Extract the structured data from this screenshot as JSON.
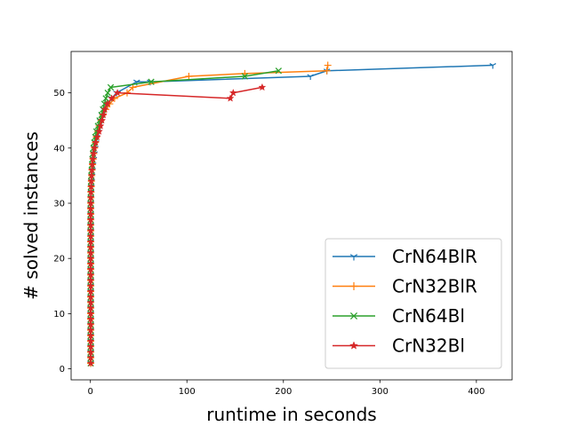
{
  "chart_data": {
    "type": "line",
    "xlabel": "runtime in seconds",
    "ylabel": "# solved instances",
    "xlim": [
      -20,
      437
    ],
    "ylim": [
      -2,
      57.5
    ],
    "xticks": [
      0,
      100,
      200,
      300,
      400
    ],
    "yticks": [
      0,
      10,
      20,
      30,
      40,
      50
    ],
    "legend_position": "lower-right",
    "grid": false,
    "series": [
      {
        "name": "CrN64BlR",
        "color": "#1f77b4",
        "marker": "tri_down",
        "x": [
          0.3,
          0.3,
          0.3,
          0.3,
          0.3,
          0.3,
          0.3,
          0.3,
          0.3,
          0.3,
          0.3,
          0.3,
          0.3,
          0.3,
          0.3,
          0.3,
          0.3,
          0.3,
          0.3,
          0.3,
          0.3,
          0.3,
          0.3,
          0.3,
          0.3,
          0.3,
          0.3,
          0.3,
          0.3,
          0.4,
          0.5,
          0.7,
          1,
          1.3,
          1.8,
          2.2,
          2.8,
          3.5,
          4.2,
          5,
          5.8,
          6.5,
          7.5,
          8.7,
          10,
          12,
          14,
          18,
          22,
          27,
          48,
          62,
          228,
          245,
          417
        ],
        "y": [
          1,
          2,
          3,
          4,
          5,
          6,
          7,
          8,
          9,
          10,
          11,
          12,
          13,
          14,
          15,
          16,
          17,
          18,
          19,
          20,
          21,
          22,
          23,
          24,
          25,
          26,
          27,
          28,
          29,
          30,
          31,
          32,
          33,
          34,
          35,
          36,
          37,
          38,
          39,
          40,
          41,
          42,
          43,
          44,
          45,
          46,
          47,
          48,
          49,
          50,
          52,
          52,
          53,
          54,
          55
        ]
      },
      {
        "name": "CrN32BlR",
        "color": "#ff7f0e",
        "marker": "plus",
        "x": [
          0.3,
          0.3,
          0.3,
          0.3,
          0.3,
          0.3,
          0.3,
          0.3,
          0.3,
          0.3,
          0.3,
          0.3,
          0.3,
          0.3,
          0.3,
          0.3,
          0.3,
          0.3,
          0.3,
          0.3,
          0.3,
          0.3,
          0.3,
          0.3,
          0.3,
          0.3,
          0.3,
          0.3,
          0.3,
          0.4,
          0.5,
          0.6,
          0.8,
          1,
          1.3,
          1.7,
          2.2,
          2.8,
          3.5,
          4.3,
          5.2,
          6.2,
          7.5,
          9,
          11,
          13,
          16,
          20,
          25,
          38,
          44,
          102,
          160,
          245,
          246
        ],
        "y": [
          1,
          2,
          3,
          4,
          5,
          6,
          7,
          8,
          9,
          10,
          11,
          12,
          13,
          14,
          15,
          16,
          17,
          18,
          19,
          20,
          21,
          22,
          23,
          24,
          25,
          26,
          27,
          28,
          29,
          30,
          31,
          32,
          33,
          34,
          35,
          36,
          37,
          38,
          39,
          40,
          41,
          42,
          43,
          44,
          45,
          46,
          47,
          48,
          49,
          50,
          51,
          53,
          53.5,
          54,
          55
        ]
      },
      {
        "name": "CrN64Bl",
        "color": "#2ca02c",
        "marker": "x",
        "x": [
          0.3,
          0.3,
          0.3,
          0.3,
          0.3,
          0.3,
          0.3,
          0.3,
          0.3,
          0.3,
          0.3,
          0.3,
          0.3,
          0.3,
          0.3,
          0.3,
          0.3,
          0.3,
          0.3,
          0.3,
          0.3,
          0.3,
          0.3,
          0.3,
          0.3,
          0.3,
          0.3,
          0.3,
          0.3,
          0.3,
          0.4,
          0.5,
          0.6,
          0.8,
          1,
          1.3,
          1.7,
          2.1,
          2.6,
          3.2,
          4,
          5,
          6.2,
          7.8,
          9.5,
          11.5,
          13,
          14.5,
          16,
          18,
          21,
          63,
          160,
          195
        ],
        "y": [
          1,
          2,
          3,
          4,
          5,
          6,
          7,
          8,
          9,
          10,
          11,
          12,
          13,
          14,
          15,
          16,
          17,
          18,
          19,
          20,
          21,
          22,
          23,
          24,
          25,
          26,
          27,
          28,
          29,
          30,
          31,
          32,
          33,
          34,
          35,
          36,
          37,
          38,
          39,
          40,
          41,
          42,
          43,
          44,
          45,
          46,
          47,
          48,
          49,
          50,
          51,
          52,
          53,
          54
        ]
      },
      {
        "name": "CrN32Bl",
        "color": "#d62728",
        "marker": "star",
        "x": [
          0.3,
          0.3,
          0.3,
          0.3,
          0.3,
          0.3,
          0.3,
          0.3,
          0.3,
          0.3,
          0.3,
          0.3,
          0.3,
          0.3,
          0.3,
          0.3,
          0.3,
          0.3,
          0.3,
          0.3,
          0.3,
          0.3,
          0.3,
          0.3,
          0.3,
          0.3,
          0.3,
          0.3,
          0.3,
          0.3,
          0.4,
          0.5,
          0.7,
          0.9,
          1.2,
          1.6,
          2,
          2.6,
          3.3,
          4.2,
          5.5,
          7,
          9,
          10.5,
          12,
          13.5,
          15,
          17.5,
          22,
          28,
          145,
          148,
          178
        ],
        "y": [
          1,
          2,
          3,
          4,
          5,
          6,
          7,
          8,
          9,
          10,
          11,
          12,
          13,
          14,
          15,
          16,
          17,
          18,
          19,
          20,
          21,
          22,
          23,
          24,
          25,
          26,
          27,
          28,
          29,
          30,
          31,
          32,
          33,
          34,
          35,
          36,
          37,
          38,
          39,
          40,
          41,
          42,
          43,
          44,
          45,
          46,
          47,
          48,
          49,
          50,
          49,
          50,
          51
        ]
      }
    ]
  }
}
